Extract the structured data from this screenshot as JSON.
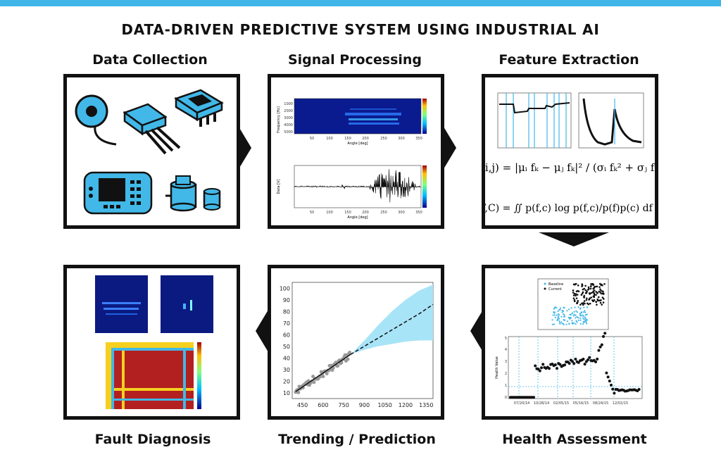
{
  "title": "DATA-DRIVEN PREDICTIVE SYSTEM USING INDUSTRIAL AI",
  "stages": {
    "data_collection": "Data Collection",
    "signal_processing": "Signal Processing",
    "feature_extraction": "Feature Extraction",
    "health_assessment": "Health Assessment",
    "trending_prediction": "Trending / Prediction",
    "fault_diagnosis": "Fault Diagnosis"
  },
  "colors": {
    "accent": "#3fb5e8",
    "device": "#41b8e8",
    "frame": "#111111"
  },
  "signal_processing": {
    "spectrogram_ylabel": "Frequency [Hz]",
    "spectrogram_yticks": [
      "1000",
      "2000",
      "3000",
      "4000",
      "5000"
    ],
    "signal_ylabel": "Data [V]",
    "xticks": [
      "50",
      "100",
      "150",
      "200",
      "250",
      "300",
      "350"
    ],
    "xlabel": "Angle [deg]"
  },
  "health_assessment": {
    "legend": [
      "Baseline",
      "Current"
    ],
    "ylabel": "Health Value",
    "yticks": [
      "0",
      "1",
      "2",
      "3",
      "4",
      "5"
    ],
    "xticks": [
      "07/20/14",
      "10/28/14",
      "02/05/15",
      "05/16/15",
      "08/24/15",
      "12/02/15"
    ]
  },
  "chart_data": {
    "type": "line",
    "x_ticks": [
      "450",
      "600",
      "750",
      "900",
      "1050",
      "1200",
      "1350"
    ],
    "y_ticks": [
      "10",
      "20",
      "30",
      "40",
      "50",
      "60",
      "70",
      "80",
      "90",
      "100"
    ],
    "xlim": [
      375,
      1400
    ],
    "ylim": [
      5,
      105
    ],
    "series": [
      {
        "values_x": [
          400,
          450,
          500,
          550,
          600,
          650,
          700,
          750,
          800
        ],
        "values_y": [
          11,
          15,
          19,
          23,
          27,
          31,
          35,
          39,
          43
        ]
      },
      {
        "values_x": [
          800,
          900,
          1000,
          1100,
          1200,
          1300,
          1400
        ],
        "values_y": [
          43,
          50,
          57,
          64,
          71,
          78,
          86
        ]
      }
    ],
    "band": {
      "x": [
        800,
        900,
        1000,
        1100,
        1200,
        1300,
        1400
      ],
      "upper": [
        43,
        55,
        68,
        80,
        90,
        98,
        103
      ],
      "lower": [
        43,
        47,
        50,
        52,
        54,
        55,
        55
      ]
    }
  }
}
